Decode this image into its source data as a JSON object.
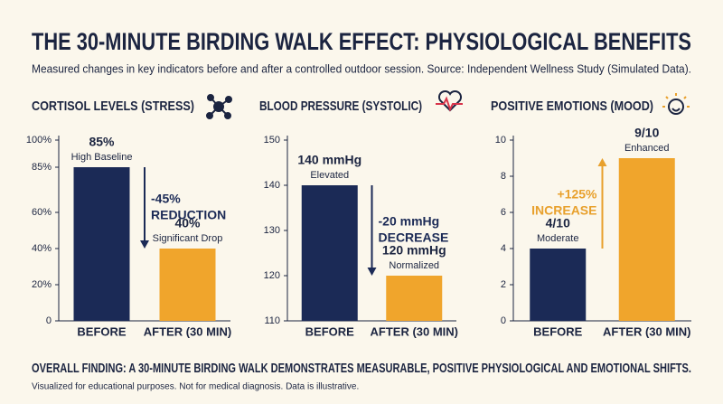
{
  "title": "THE 30-MINUTE BIRDING WALK EFFECT: PHYSIOLOGICAL BENEFITS",
  "subtitle": "Measured changes in key indicators before and after a controlled outdoor session. Source: Independent Wellness Study (Simulated Data).",
  "finding": "OVERALL FINDING: A 30-MINUTE BIRDING WALK DEMONSTRATES MEASURABLE, POSITIVE PHYSIOLOGICAL AND EMOTIONAL SHIFTS.",
  "footnote": "Visualized for educational purposes. Not for medical diagnosis. Data is illustrative.",
  "chart_data": [
    {
      "type": "bar",
      "title": "CORTISOL LEVELS (STRESS)",
      "categories": [
        "BEFORE",
        "AFTER (30 MIN)"
      ],
      "values": [
        85,
        40
      ],
      "value_labels": [
        "85%",
        "40%"
      ],
      "notes": [
        "High Baseline",
        "Significant Drop"
      ],
      "colors": [
        "#1b2a56",
        "#f0a52c"
      ],
      "ylim": [
        0,
        100
      ],
      "yticks": [
        {
          "value": 100,
          "label": "100%"
        },
        {
          "value": 85,
          "label": "85%"
        },
        {
          "value": 60,
          "label": "60%"
        },
        {
          "value": 40,
          "label": "40%"
        },
        {
          "value": 20,
          "label": "20%"
        },
        0
      ],
      "change": {
        "label": "-45%",
        "text": "REDUCTION",
        "color": "#1b2a56"
      },
      "grid": false
    },
    {
      "type": "bar",
      "title": "BLOOD PRESSURE (SYSTOLIC)",
      "categories": [
        "BEFORE",
        "AFTER (30 MIN)"
      ],
      "values": [
        140,
        120
      ],
      "value_labels": [
        "140 mmHg",
        "120 mmHg"
      ],
      "notes": [
        "Elevated",
        "Normalized"
      ],
      "colors": [
        "#1b2a56",
        "#f0a52c"
      ],
      "ylim": [
        110,
        150
      ],
      "yticks": [
        150,
        140,
        130,
        120,
        110
      ],
      "change": {
        "label": "-20 mmHg",
        "text": "DECREASE",
        "color": "#1b2a56"
      },
      "grid": false
    },
    {
      "type": "bar",
      "title": "POSITIVE EMOTIONS (MOOD)",
      "categories": [
        "BEFORE",
        "AFTER (30 MIN)"
      ],
      "values": [
        4,
        9
      ],
      "value_labels": [
        "4/10",
        "9/10"
      ],
      "notes": [
        "Moderate",
        "Enhanced"
      ],
      "colors": [
        "#1b2a56",
        "#f0a52c"
      ],
      "ylim": [
        0,
        10
      ],
      "yticks": [
        10,
        8,
        6,
        4,
        2,
        0
      ],
      "change": {
        "label": "+125%",
        "text": "INCREASE",
        "color": "#e8a02c"
      },
      "grid": false
    }
  ]
}
